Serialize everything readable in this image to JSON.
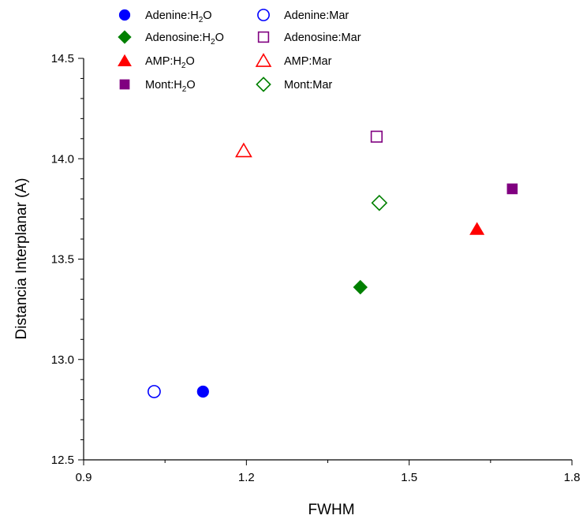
{
  "chart_data": {
    "type": "scatter",
    "title": "",
    "xlabel": "FWHM",
    "ylabel": "Distancia Interplanar (A)",
    "xlim": [
      0.9,
      1.8
    ],
    "ylim": [
      12.5,
      14.5
    ],
    "xticks": [
      "0.9",
      "1.2",
      "1.5",
      "1.8"
    ],
    "yticks": [
      "12.5",
      "13.0",
      "13.5",
      "14.0",
      "14.5"
    ],
    "grid": false,
    "legend_position": "top-left",
    "series": [
      {
        "name": "Adenine:H2O",
        "legend_main": "Adenine:H",
        "legend_sub": "2",
        "legend_tail": "O",
        "marker": "circle",
        "filled": true,
        "color": "#0000ff",
        "points": [
          [
            1.12,
            12.84
          ]
        ]
      },
      {
        "name": "Adenine:Mar",
        "legend_main": "Adenine:Mar",
        "legend_sub": "",
        "legend_tail": "",
        "marker": "circle",
        "filled": false,
        "color": "#0000ff",
        "points": [
          [
            1.03,
            12.84
          ]
        ]
      },
      {
        "name": "Adenosine:H2O",
        "legend_main": "Adenosine:H",
        "legend_sub": "2",
        "legend_tail": "O",
        "marker": "diamond",
        "filled": true,
        "color": "#008000",
        "points": [
          [
            1.41,
            13.36
          ]
        ]
      },
      {
        "name": "Adenosine:Mar",
        "legend_main": "Adenosine:Mar",
        "legend_sub": "",
        "legend_tail": "",
        "marker": "square",
        "filled": false,
        "color": "#800080",
        "points": [
          [
            1.44,
            14.11
          ]
        ]
      },
      {
        "name": "AMP:H2O",
        "legend_main": "AMP:H",
        "legend_sub": "2",
        "legend_tail": "O",
        "marker": "triangle",
        "filled": true,
        "color": "#ff0000",
        "points": [
          [
            1.625,
            13.65
          ]
        ]
      },
      {
        "name": "AMP:Mar",
        "legend_main": "AMP:Mar",
        "legend_sub": "",
        "legend_tail": "",
        "marker": "triangle",
        "filled": false,
        "color": "#ff0000",
        "points": [
          [
            1.195,
            14.04
          ]
        ]
      },
      {
        "name": "Mont:H2O",
        "legend_main": "Mont:H",
        "legend_sub": "2",
        "legend_tail": "O",
        "marker": "square",
        "filled": true,
        "color": "#800080",
        "points": [
          [
            1.69,
            13.85
          ]
        ]
      },
      {
        "name": "Mont:Mar",
        "legend_main": "Mont:Mar",
        "legend_sub": "",
        "legend_tail": "",
        "marker": "diamond",
        "filled": false,
        "color": "#008000",
        "points": [
          [
            1.445,
            13.78
          ]
        ]
      }
    ]
  }
}
